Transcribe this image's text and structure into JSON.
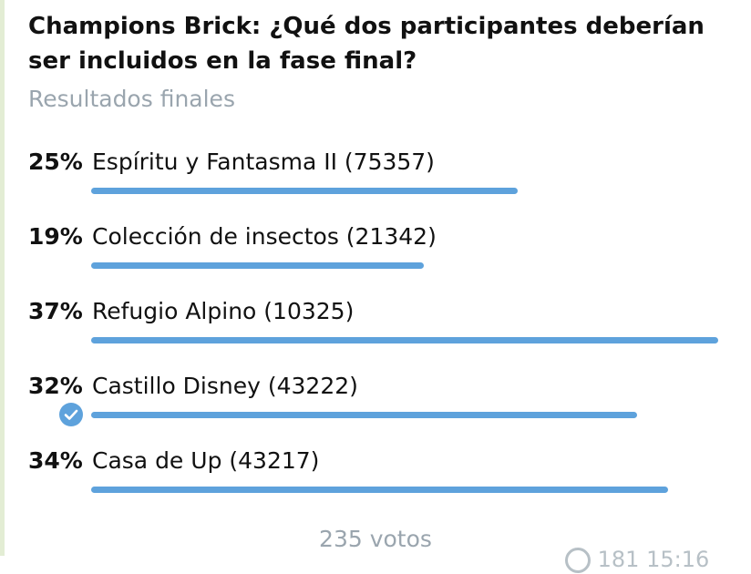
{
  "poll": {
    "question": "Champions Brick: ¿Qué dos participantes deberían ser incluidos en la fase final?",
    "status": "Resultados finales",
    "options": [
      {
        "percent": "25%",
        "label": "Espíritu y Fantasma II (75357)",
        "fill": 0.68,
        "voted": false
      },
      {
        "percent": "19%",
        "label": "Colección de insectos (21342)",
        "fill": 0.53,
        "voted": false
      },
      {
        "percent": "37%",
        "label": "Refugio Alpino (10325)",
        "fill": 1.0,
        "voted": false
      },
      {
        "percent": "32%",
        "label": "Castillo Disney (43222)",
        "fill": 0.87,
        "voted": true
      },
      {
        "percent": "34%",
        "label": "Casa de Up (43217)",
        "fill": 0.92,
        "voted": false
      }
    ],
    "total_votes": "235 votos",
    "views": "181",
    "time": "15:16"
  },
  "colors": {
    "bar": "#5ea2dc",
    "muted_text": "#9aa5ae",
    "text": "#111111"
  },
  "icons": {
    "voted_mark": "check-circle-icon",
    "views": "eye-icon"
  }
}
